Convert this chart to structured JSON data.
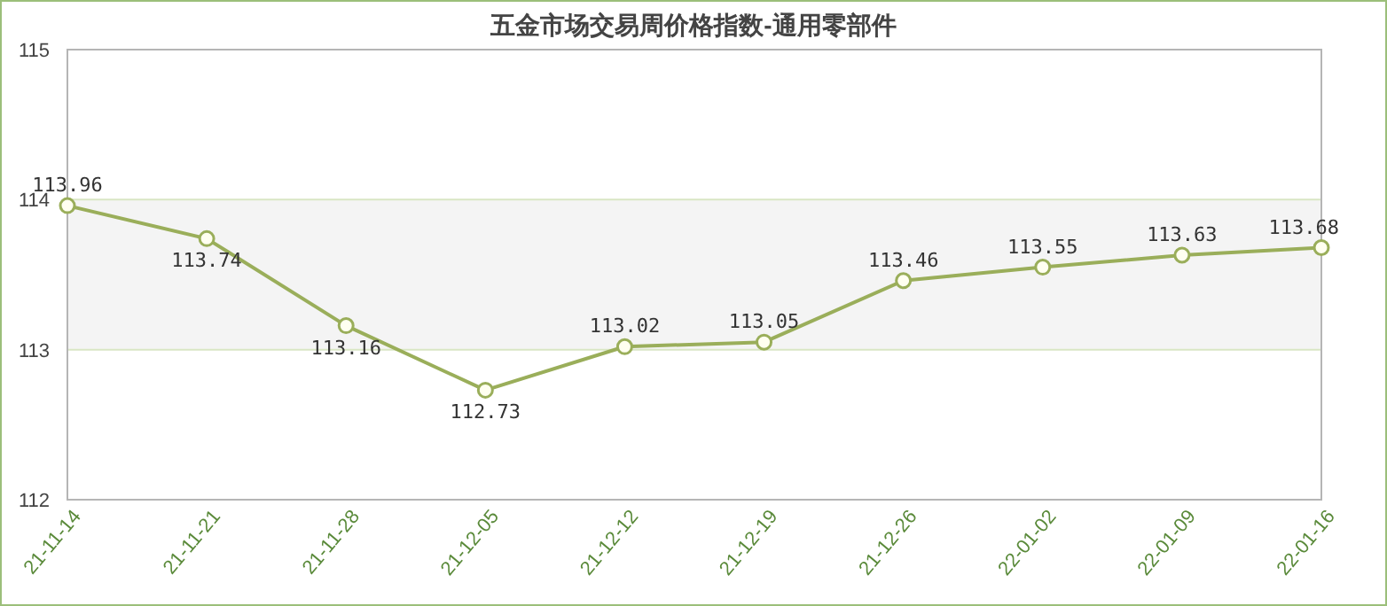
{
  "chart_data": {
    "type": "line",
    "title": "五金市场交易周价格指数-通用零部件",
    "categories": [
      "21-11-14",
      "21-11-21",
      "21-11-28",
      "21-12-05",
      "21-12-12",
      "21-12-19",
      "21-12-26",
      "22-01-02",
      "22-01-09",
      "22-01-16"
    ],
    "series": [
      {
        "color": "#9aae5a",
        "values": [
          113.96,
          113.74,
          113.16,
          112.73,
          113.02,
          113.05,
          113.46,
          113.55,
          113.63,
          113.68
        ]
      }
    ],
    "ylim": [
      112,
      115
    ],
    "yticks": [
      112,
      113,
      114,
      115
    ],
    "grid": "y",
    "marker": "circle",
    "data_labels": true,
    "bands": [
      {
        "axis": "y",
        "from": 113,
        "to": 114,
        "color": "#f4f4f4"
      }
    ]
  }
}
